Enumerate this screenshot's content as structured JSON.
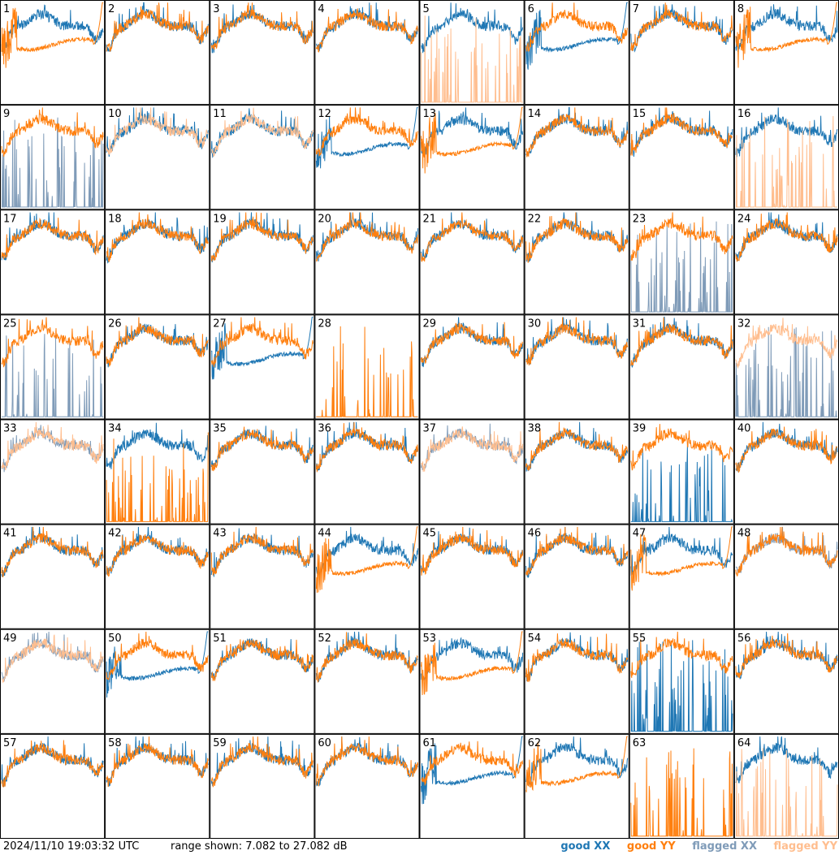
{
  "footer": {
    "timestamp": "2024/11/10 19:03:32 UTC",
    "range_text": "range shown: 7.082 to 27.082 dB",
    "legend": {
      "good_xx": "good XX",
      "good_yy": "good YY",
      "flagged_xx": "flagged XX",
      "flagged_yy": "flagged YY"
    }
  },
  "colors": {
    "good_xx": "#1f77b4",
    "good_yy": "#ff7f0e",
    "flagged_xx": "#7f9bb8",
    "flagged_yy": "#ffbe8f"
  },
  "chart_data": {
    "type": "line",
    "layout": "8x8 grid of per-antenna spectra",
    "ylim": [
      7.082,
      27.082
    ],
    "units": "dB",
    "panels": [
      {
        "id": "1",
        "xx": "typical",
        "yy": "dropoff"
      },
      {
        "id": "2",
        "xx": "typical",
        "yy": "typical"
      },
      {
        "id": "3",
        "xx": "typical",
        "yy": "typical"
      },
      {
        "id": "4",
        "xx": "typical",
        "yy": "typical"
      },
      {
        "id": "5",
        "xx": "typical",
        "yy": "spiky_flagged"
      },
      {
        "id": "6",
        "xx": "dropoff",
        "yy": "typical"
      },
      {
        "id": "7",
        "xx": "typical",
        "yy": "typical"
      },
      {
        "id": "8",
        "xx": "typical",
        "yy": "dropoff"
      },
      {
        "id": "9",
        "xx": "spiky_flagged",
        "yy": "typical"
      },
      {
        "id": "10",
        "xx": "typical",
        "yy": "flagged"
      },
      {
        "id": "11",
        "xx": "typical",
        "yy": "flagged"
      },
      {
        "id": "12",
        "xx": "dropoff",
        "yy": "typical"
      },
      {
        "id": "13",
        "xx": "typical",
        "yy": "dropoff"
      },
      {
        "id": "14",
        "xx": "typical",
        "yy": "typical"
      },
      {
        "id": "15",
        "xx": "typical",
        "yy": "typical"
      },
      {
        "id": "16",
        "xx": "typical",
        "yy": "spiky_flagged"
      },
      {
        "id": "17",
        "xx": "typical",
        "yy": "typical"
      },
      {
        "id": "18",
        "xx": "typical",
        "yy": "typical"
      },
      {
        "id": "19",
        "xx": "typical",
        "yy": "typical"
      },
      {
        "id": "20",
        "xx": "typical",
        "yy": "typical"
      },
      {
        "id": "21",
        "xx": "typical",
        "yy": "typical"
      },
      {
        "id": "22",
        "xx": "typical",
        "yy": "typical"
      },
      {
        "id": "23",
        "xx": "spiky_flagged",
        "yy": "typical"
      },
      {
        "id": "24",
        "xx": "typical",
        "yy": "typical"
      },
      {
        "id": "25",
        "xx": "spiky_flagged",
        "yy": "typical"
      },
      {
        "id": "26",
        "xx": "typical",
        "yy": "typical"
      },
      {
        "id": "27",
        "xx": "dropoff",
        "yy": "typical"
      },
      {
        "id": "28",
        "xx": "none",
        "yy": "spiky"
      },
      {
        "id": "29",
        "xx": "typical",
        "yy": "typical"
      },
      {
        "id": "30",
        "xx": "typical",
        "yy": "typical"
      },
      {
        "id": "31",
        "xx": "typical",
        "yy": "typical"
      },
      {
        "id": "32",
        "xx": "spiky_flagged",
        "yy": "flagged"
      },
      {
        "id": "33",
        "xx": "flagged",
        "yy": "flagged"
      },
      {
        "id": "34",
        "xx": "typical",
        "yy": "spiky"
      },
      {
        "id": "35",
        "xx": "typical",
        "yy": "typical"
      },
      {
        "id": "36",
        "xx": "typical",
        "yy": "typical"
      },
      {
        "id": "37",
        "xx": "flagged",
        "yy": "flagged"
      },
      {
        "id": "38",
        "xx": "typical",
        "yy": "typical"
      },
      {
        "id": "39",
        "xx": "spiky",
        "yy": "typical"
      },
      {
        "id": "40",
        "xx": "typical",
        "yy": "typical"
      },
      {
        "id": "41",
        "xx": "typical",
        "yy": "typical"
      },
      {
        "id": "42",
        "xx": "typical",
        "yy": "typical"
      },
      {
        "id": "43",
        "xx": "typical",
        "yy": "typical"
      },
      {
        "id": "44",
        "xx": "typical",
        "yy": "dropoff"
      },
      {
        "id": "45",
        "xx": "typical",
        "yy": "typical"
      },
      {
        "id": "46",
        "xx": "typical",
        "yy": "typical"
      },
      {
        "id": "47",
        "xx": "typical",
        "yy": "dropoff"
      },
      {
        "id": "48",
        "xx": "flagged",
        "yy": "typical"
      },
      {
        "id": "49",
        "xx": "flagged",
        "yy": "flagged"
      },
      {
        "id": "50",
        "xx": "dropoff",
        "yy": "typical"
      },
      {
        "id": "51",
        "xx": "typical",
        "yy": "typical"
      },
      {
        "id": "52",
        "xx": "typical",
        "yy": "typical"
      },
      {
        "id": "53",
        "xx": "typical",
        "yy": "dropoff"
      },
      {
        "id": "54",
        "xx": "typical",
        "yy": "typical"
      },
      {
        "id": "55",
        "xx": "spiky",
        "yy": "typical"
      },
      {
        "id": "56",
        "xx": "typical",
        "yy": "typical"
      },
      {
        "id": "57",
        "xx": "typical",
        "yy": "typical"
      },
      {
        "id": "58",
        "xx": "typical",
        "yy": "typical"
      },
      {
        "id": "59",
        "xx": "typical",
        "yy": "typical"
      },
      {
        "id": "60",
        "xx": "typical",
        "yy": "typical"
      },
      {
        "id": "61",
        "xx": "dropoff",
        "yy": "typical"
      },
      {
        "id": "62",
        "xx": "typical",
        "yy": "dropoff"
      },
      {
        "id": "63",
        "xx": "none",
        "yy": "spiky"
      },
      {
        "id": "64",
        "xx": "typical",
        "yy": "spiky_flagged"
      }
    ]
  }
}
